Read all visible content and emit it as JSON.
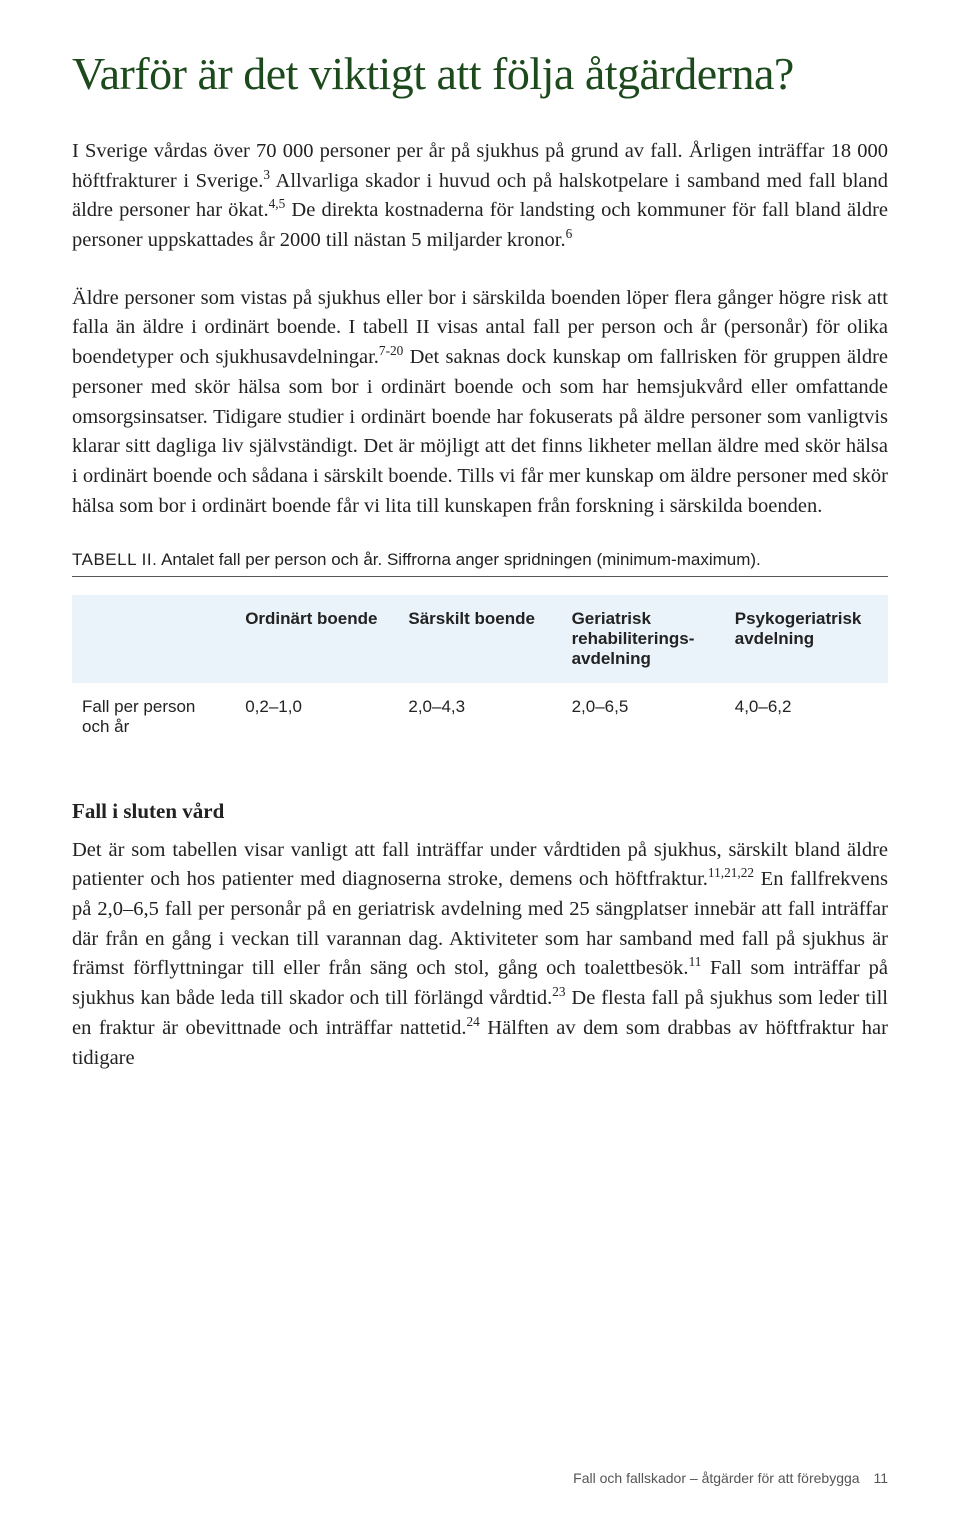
{
  "colors": {
    "heading": "#1d4a1d",
    "text": "#222222",
    "footer": "#555555",
    "tableHeaderBg": "#eaf2fa",
    "hr": "#555555",
    "background": "#ffffff"
  },
  "typography": {
    "heading_fontsize": 46,
    "body_fontsize": 20.5,
    "table_fontsize": 17,
    "caption_fontsize": 17,
    "subheading_fontsize": 21,
    "footer_fontsize": 14,
    "body_lineheight": 1.45,
    "heading_lineheight": 1.15
  },
  "heading": "Varför är det viktigt att följa åtgärderna?",
  "paragraph1_html": "I Sverige vårdas över 70 000 personer per år på sjukhus på grund av fall. Årligen inträffar 18 000 höftfrakturer i Sverige.<sup>3</sup> Allvarliga skador i huvud och på halskotpelare i samband med fall bland äldre personer har ökat.<sup>4,5</sup> De direkta kostnaderna för landsting och kommuner för fall bland äldre personer uppskattades år 2000 till nästan 5 miljarder kronor.<sup>6</sup>",
  "paragraph2_html": "Äldre personer som vistas på sjukhus eller bor i särskilda boenden löper flera gånger högre risk att falla än äldre i ordinärt boende. I tabell II visas antal fall per person och år (personår) för olika boendetyper och sjukhusavdelningar.<sup>7-20</sup> Det saknas dock kunskap om fallrisken för gruppen äldre personer med skör hälsa som bor i ordinärt boende och som har hemsjukvård eller omfattande omsorgsinsatser. Tidigare studier i ordinärt boende har fokuserats på äldre personer som vanligtvis klarar sitt dagliga liv självständigt. Det är möjligt att det finns likheter mellan äldre med skör hälsa i ordinärt boende och sådana i särskilt boende. Tills vi får mer kunskap om äldre personer med skör hälsa som bor i ordinärt boende får vi lita till kunskapen från forskning i särskilda boenden.",
  "table": {
    "caption_prefix": "TABELL II.",
    "caption_text": " Antalet fall per person och år. Siffrorna anger spridningen (minimum-maximum).",
    "columns": [
      "",
      "Ordinärt boende",
      "Särskilt boende",
      "Geriatrisk rehabiliterings-avdelning",
      "Psykogeriatrisk avdelning"
    ],
    "row_label": "Fall per person och år",
    "row_values": [
      "0,2–1,0",
      "2,0–4,3",
      "2,0–6,5",
      "4,0–6,2"
    ]
  },
  "subheading": "Fall i sluten vård",
  "paragraph3_html": "Det är som tabellen visar vanligt att fall inträffar under vårdtiden på sjukhus, särskilt bland äldre patienter och hos patienter med diagnoserna stroke, demens och höftfraktur.<sup>11,21,22</sup> En fallfrekvens på 2,0–6,5 fall per personår på en geriatrisk avdelning med 25 sängplatser innebär att fall inträffar där från en gång i veckan till varannan dag. Aktiviteter som har samband med fall på sjukhus är främst förflyttningar till eller från säng och stol, gång och toalettbesök.<sup>11</sup> Fall som inträffar på sjukhus kan både leda till skador och till förlängd vårdtid.<sup>23</sup> De flesta fall på sjukhus som leder till en fraktur är obevittnade och inträffar nattetid.<sup>24</sup> Hälften av dem som drabbas av höftfraktur har tidigare",
  "footer": {
    "title": "Fall och fallskador – åtgärder för att förebygga",
    "page": "11"
  }
}
